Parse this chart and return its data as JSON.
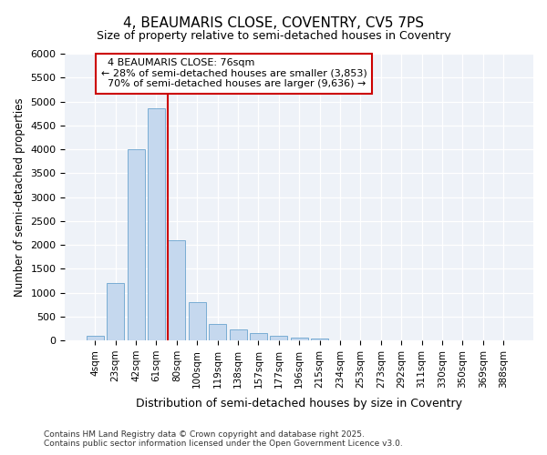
{
  "title": "4, BEAUMARIS CLOSE, COVENTRY, CV5 7PS",
  "subtitle": "Size of property relative to semi-detached houses in Coventry",
  "xlabel": "Distribution of semi-detached houses by size in Coventry",
  "ylabel": "Number of semi-detached properties",
  "footnote1": "Contains HM Land Registry data © Crown copyright and database right 2025.",
  "footnote2": "Contains public sector information licensed under the Open Government Licence v3.0.",
  "property_label": "4 BEAUMARIS CLOSE: 76sqm",
  "pct_smaller": 28,
  "count_smaller": 3853,
  "pct_larger": 70,
  "count_larger": 9636,
  "bar_color": "#c5d8ee",
  "bar_edge_color": "#7aadd4",
  "vline_color": "#cc0000",
  "annotation_box_color": "#cc0000",
  "background_color": "#eef2f8",
  "categories": [
    "4sqm",
    "23sqm",
    "42sqm",
    "61sqm",
    "80sqm",
    "100sqm",
    "119sqm",
    "138sqm",
    "157sqm",
    "177sqm",
    "196sqm",
    "215sqm",
    "234sqm",
    "253sqm",
    "273sqm",
    "292sqm",
    "311sqm",
    "330sqm",
    "350sqm",
    "369sqm",
    "388sqm"
  ],
  "values": [
    100,
    1200,
    4000,
    4850,
    2100,
    800,
    350,
    230,
    150,
    100,
    50,
    30,
    10,
    5,
    2,
    1,
    0,
    0,
    0,
    0,
    0
  ],
  "vline_index": 4,
  "ylim": [
    0,
    6000
  ],
  "yticks": [
    0,
    500,
    1000,
    1500,
    2000,
    2500,
    3000,
    3500,
    4000,
    4500,
    5000,
    5500,
    6000
  ]
}
